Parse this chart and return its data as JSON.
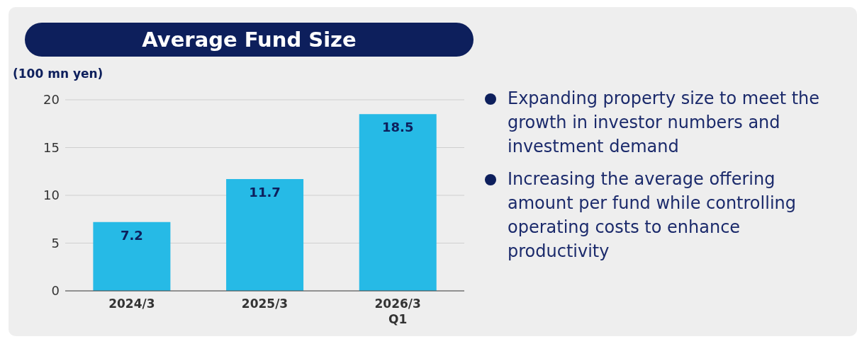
{
  "chart_data": {
    "type": "bar",
    "title": "Average Fund Size",
    "ylabel": "(100 mn yen)",
    "categories": [
      "2024/3",
      "2025/3",
      "2026/3\nQ1"
    ],
    "values": [
      7.2,
      11.7,
      18.5
    ],
    "color": "#26bae6",
    "ylim": [
      0,
      20
    ],
    "yticks": [
      0,
      5,
      10,
      15,
      20
    ],
    "grid": "y",
    "data_labels": true,
    "annotations": [
      "Expanding property size to meet the growth in investor numbers and investment demand",
      "Increasing the average offering amount per fund while controlling operating costs to enhance productivity"
    ]
  }
}
